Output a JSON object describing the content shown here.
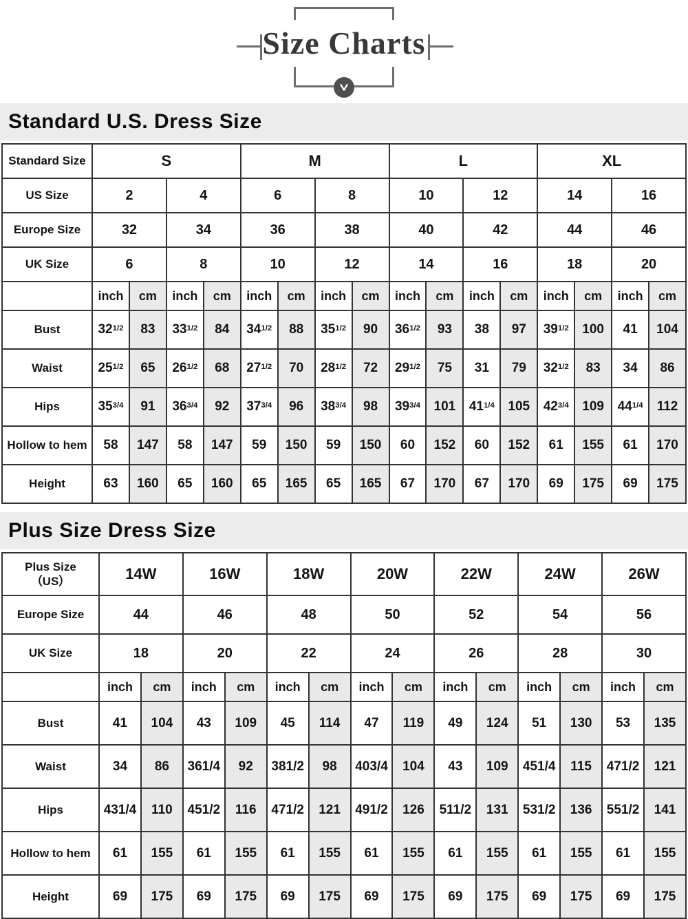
{
  "title": "Size Charts",
  "icons": {
    "down_arrow": "down-arrow-icon"
  },
  "colors": {
    "band_bg": "#ececec",
    "cm_bg": "#e9e9e9",
    "border": "#333333",
    "decoration": "#6e6e6e"
  },
  "tables": [
    {
      "heading": "Standard U.S. Dress Size",
      "columns": 16,
      "unit_labels": [
        "inch",
        "cm"
      ],
      "group_rows": [
        {
          "label": "Standard Size",
          "span": 4,
          "values": [
            "S",
            "M",
            "L",
            "XL"
          ]
        },
        {
          "label": "US Size",
          "span": 2,
          "values": [
            "2",
            "4",
            "6",
            "8",
            "10",
            "12",
            "14",
            "16"
          ]
        },
        {
          "label": "Europe Size",
          "span": 2,
          "values": [
            "32",
            "34",
            "36",
            "38",
            "40",
            "42",
            "44",
            "46"
          ]
        },
        {
          "label": "UK Size",
          "span": 2,
          "values": [
            "6",
            "8",
            "10",
            "12",
            "14",
            "16",
            "18",
            "20"
          ]
        }
      ],
      "measure_rows": [
        {
          "label": "Bust",
          "values": [
            "32^1/2",
            "83",
            "33^1/2",
            "84",
            "34^1/2",
            "88",
            "35^1/2",
            "90",
            "36^1/2",
            "93",
            "38",
            "97",
            "39^1/2",
            "100",
            "41",
            "104"
          ]
        },
        {
          "label": "Waist",
          "values": [
            "25^1/2",
            "65",
            "26^1/2",
            "68",
            "27^1/2",
            "70",
            "28^1/2",
            "72",
            "29^1/2",
            "75",
            "31",
            "79",
            "32^1/2",
            "83",
            "34",
            "86"
          ]
        },
        {
          "label": "Hips",
          "values": [
            "35^3/4",
            "91",
            "36^3/4",
            "92",
            "37^3/4",
            "96",
            "38^3/4",
            "98",
            "39^3/4",
            "101",
            "41^1/4",
            "105",
            "42^3/4",
            "109",
            "44^1/4",
            "112"
          ]
        },
        {
          "label": "Hollow to hem",
          "values": [
            "58",
            "147",
            "58",
            "147",
            "59",
            "150",
            "59",
            "150",
            "60",
            "152",
            "60",
            "152",
            "61",
            "155",
            "61",
            "170"
          ]
        },
        {
          "label": "Height",
          "values": [
            "63",
            "160",
            "65",
            "160",
            "65",
            "165",
            "65",
            "165",
            "67",
            "170",
            "67",
            "170",
            "69",
            "175",
            "69",
            "175"
          ]
        }
      ]
    },
    {
      "heading": "Plus Size Dress Size",
      "columns": 14,
      "unit_labels": [
        "inch",
        "cm"
      ],
      "group_rows": [
        {
          "label": "Plus Size\n（US）",
          "span": 2,
          "values": [
            "14W",
            "16W",
            "18W",
            "20W",
            "22W",
            "24W",
            "26W"
          ]
        },
        {
          "label": "Europe Size",
          "span": 2,
          "values": [
            "44",
            "46",
            "48",
            "50",
            "52",
            "54",
            "56"
          ]
        },
        {
          "label": "UK Size",
          "span": 2,
          "values": [
            "18",
            "20",
            "22",
            "24",
            "26",
            "28",
            "30"
          ]
        }
      ],
      "measure_rows": [
        {
          "label": "Bust",
          "values": [
            "41",
            "104",
            "43",
            "109",
            "45",
            "114",
            "47",
            "119",
            "49",
            "124",
            "51",
            "130",
            "53",
            "135"
          ]
        },
        {
          "label": "Waist",
          "values": [
            "34",
            "86",
            "361/4",
            "92",
            "381/2",
            "98",
            "403/4",
            "104",
            "43",
            "109",
            "451/4",
            "115",
            "471/2",
            "121"
          ]
        },
        {
          "label": "Hips",
          "values": [
            "431/4",
            "110",
            "451/2",
            "116",
            "471/2",
            "121",
            "491/2",
            "126",
            "511/2",
            "131",
            "531/2",
            "136",
            "551/2",
            "141"
          ]
        },
        {
          "label": "Hollow to hem",
          "values": [
            "61",
            "155",
            "61",
            "155",
            "61",
            "155",
            "61",
            "155",
            "61",
            "155",
            "61",
            "155",
            "61",
            "155"
          ]
        },
        {
          "label": "Height",
          "values": [
            "69",
            "175",
            "69",
            "175",
            "69",
            "175",
            "69",
            "175",
            "69",
            "175",
            "69",
            "175",
            "69",
            "175"
          ]
        }
      ]
    }
  ]
}
